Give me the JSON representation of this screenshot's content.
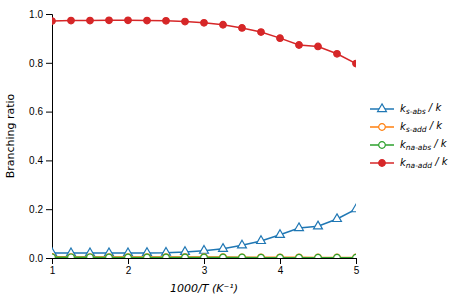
{
  "chart_data": {
    "type": "line",
    "xlabel": "1000/T (K⁻¹)",
    "ylabel": "Branching ratio",
    "x": [
      1.0,
      1.25,
      1.5,
      1.75,
      2.0,
      2.25,
      2.5,
      2.75,
      3.0,
      3.25,
      3.5,
      3.75,
      4.0,
      4.25,
      4.5,
      4.75,
      5.0
    ],
    "series": [
      {
        "name": "ks-abs / k",
        "marker": "triangle-open",
        "values": [
          0.021,
          0.02,
          0.02,
          0.02,
          0.02,
          0.021,
          0.022,
          0.025,
          0.03,
          0.038,
          0.052,
          0.07,
          0.095,
          0.123,
          0.13,
          0.16,
          0.2
        ]
      },
      {
        "name": "ks-add / k",
        "marker": "circle-open",
        "values": [
          0.005,
          0.004,
          0.004,
          0.004,
          0.004,
          0.004,
          0.004,
          0.004,
          0.004,
          0.004,
          0.003,
          0.003,
          0.003,
          0.003,
          0.002,
          0.002,
          0.002
        ]
      },
      {
        "name": "kna-abs / k",
        "marker": "circle-open",
        "values": [
          0.003,
          0.003,
          0.003,
          0.002,
          0.002,
          0.002,
          0.002,
          0.002,
          0.002,
          0.002,
          0.002,
          0.001,
          0.001,
          0.001,
          0.001,
          0.001,
          0.001
        ]
      },
      {
        "name": "kna-add / k",
        "marker": "circle",
        "values": [
          0.971,
          0.973,
          0.973,
          0.974,
          0.974,
          0.973,
          0.972,
          0.969,
          0.964,
          0.956,
          0.943,
          0.926,
          0.901,
          0.873,
          0.867,
          0.837,
          0.797
        ]
      }
    ],
    "xlim": [
      1.0,
      5.0
    ],
    "ylim": [
      0.0,
      1.0
    ],
    "xticks": [
      1,
      2,
      3,
      4,
      5
    ],
    "yticks": [
      {
        "value": 0.0,
        "label": "0.0"
      },
      0.2,
      0.4,
      0.6,
      0.8,
      {
        "value": 1.0,
        "label": "1.0"
      }
    ],
    "grid": false,
    "legend": "right"
  }
}
